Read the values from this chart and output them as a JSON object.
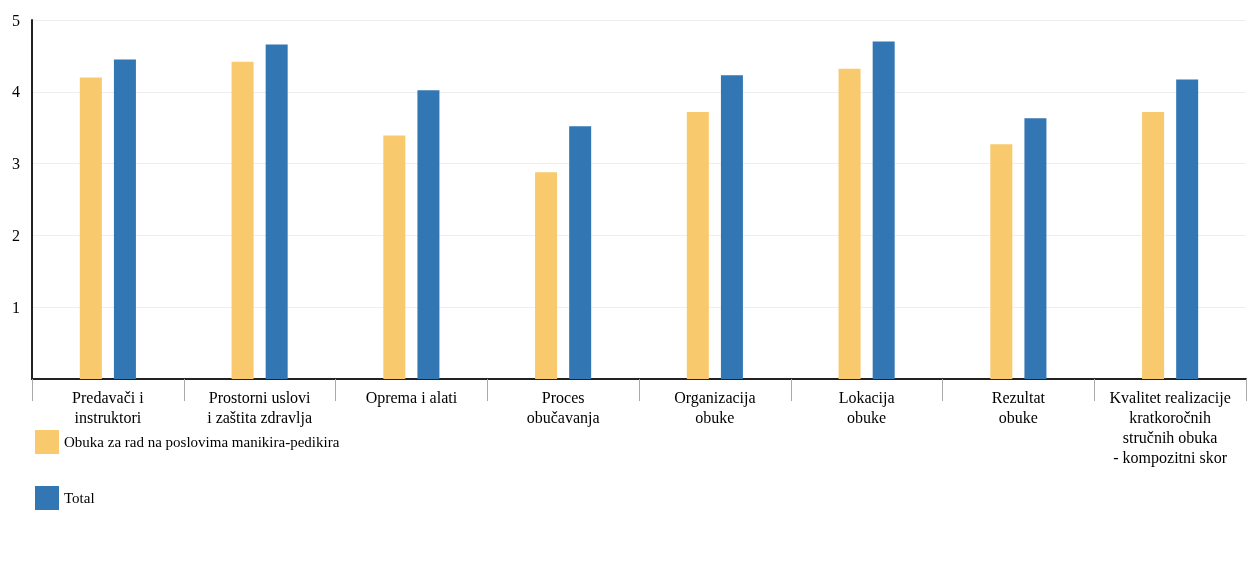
{
  "chart_data": {
    "type": "bar",
    "categories": [
      "Predavači i\ninstruktori",
      "Prostorni uslovi\ni zaštita zdravlja",
      "Oprema i alati",
      "Proces\nobučavanja",
      "Organizacija\nobuke",
      "Lokacija\nobuke",
      "Rezultat\nobuke",
      "Kvalitet realizacije\nkratkoročnih\nstručnih obuka\n- kompozitni skor"
    ],
    "series": [
      {
        "name": "Obuka za rad na poslovima manikira-pedikira",
        "color": "#f8c96d",
        "values": [
          4.2,
          4.42,
          3.39,
          2.88,
          3.72,
          4.32,
          3.27,
          3.72
        ]
      },
      {
        "name": "Total",
        "color": "#3276b3",
        "values": [
          4.45,
          4.66,
          4.02,
          3.52,
          4.23,
          4.7,
          3.63,
          4.17
        ]
      }
    ],
    "ylim": [
      0,
      5
    ],
    "yticks": [
      1,
      2,
      3,
      4,
      5
    ],
    "grid": "y",
    "legend": "bottom left"
  }
}
